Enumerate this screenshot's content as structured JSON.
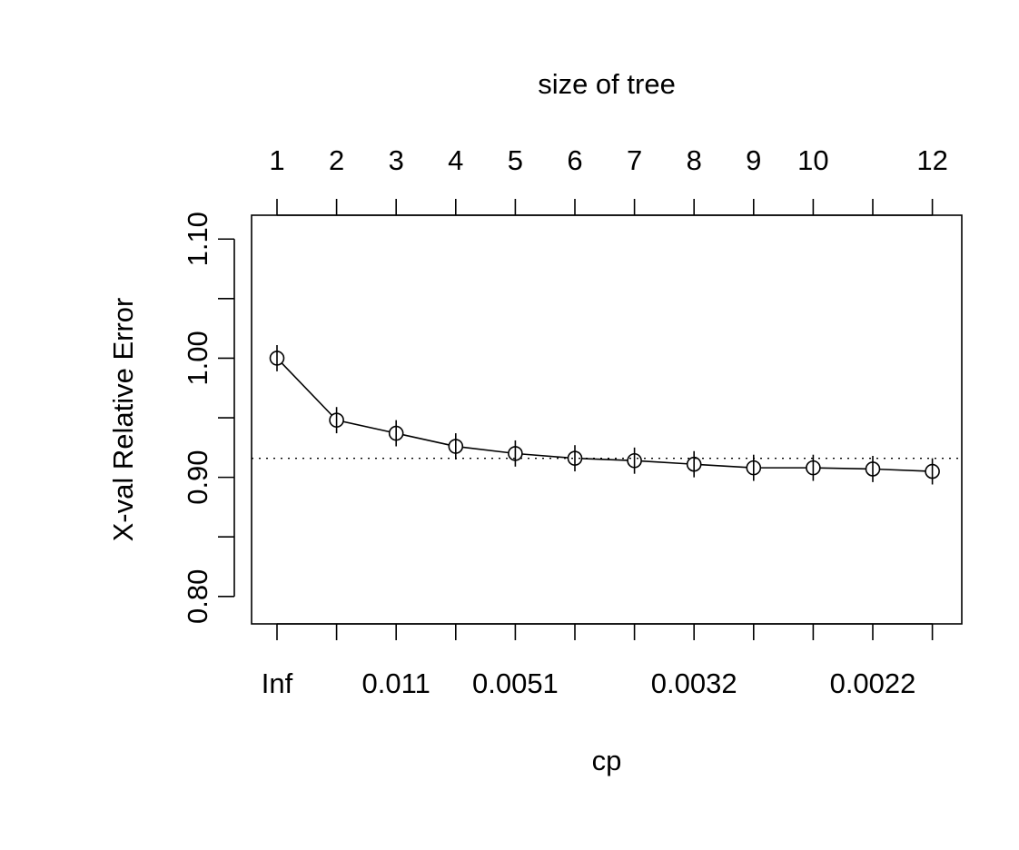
{
  "chart_data": {
    "type": "line",
    "title": "",
    "xlabel": "cp",
    "ylabel": "X-val Relative Error",
    "top_axis_label": "size of tree",
    "x_positions": [
      1,
      2,
      3,
      4,
      5,
      6,
      7,
      8,
      9,
      10,
      11,
      12
    ],
    "top_tick_labels": [
      "1",
      "2",
      "3",
      "4",
      "5",
      "6",
      "7",
      "8",
      "9",
      "10",
      "",
      "12"
    ],
    "bottom_tick_labels": [
      "Inf",
      "",
      "0.011",
      "",
      "0.0051",
      "",
      "",
      "0.0032",
      "",
      "",
      "0.0022",
      ""
    ],
    "y_ticks": [
      0.8,
      0.85,
      0.9,
      0.95,
      1.0,
      1.05,
      1.1
    ],
    "y_tick_labels": [
      "0.80",
      "",
      "0.90",
      "",
      "1.00",
      "",
      "1.10"
    ],
    "ylim": [
      0.777,
      1.12
    ],
    "series": [
      {
        "values": [
          1.0,
          0.948,
          0.937,
          0.926,
          0.92,
          0.916,
          0.914,
          0.911,
          0.908,
          0.908,
          0.907,
          0.905
        ],
        "errors": [
          0.011,
          0.011,
          0.011,
          0.011,
          0.011,
          0.011,
          0.011,
          0.011,
          0.011,
          0.011,
          0.011,
          0.011
        ]
      }
    ],
    "reference_line": 0.916,
    "grid": false,
    "marker": "open-circle",
    "line_color": "#000000"
  }
}
